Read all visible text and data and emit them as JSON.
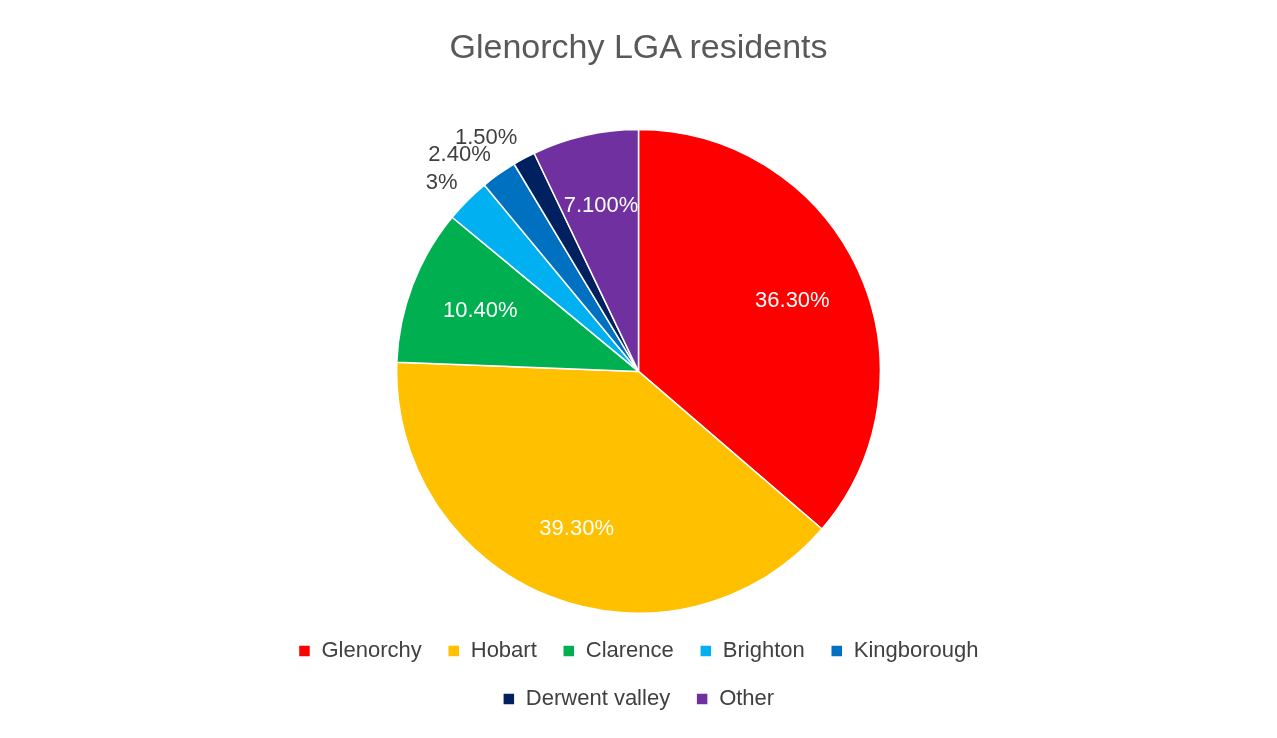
{
  "chart_data": {
    "type": "pie",
    "title": "Glenorchy LGA residents",
    "categories": [
      "Glenorchy",
      "Hobart",
      "Clarence",
      "Brighton",
      "Kingborough",
      "Derwent valley",
      "Other"
    ],
    "values": [
      36.3,
      39.3,
      10.4,
      3,
      2.4,
      1.5,
      7.1
    ],
    "value_labels": [
      "36.30%",
      "39.30%",
      "10.40%",
      "3%",
      "2.40%",
      "1.50%",
      "7.100%"
    ],
    "colors": [
      "#ff0000",
      "#ffc000",
      "#00b050",
      "#00b0f0",
      "#0070c0",
      "#002060",
      "#7030a0"
    ],
    "legend": "bottom"
  }
}
